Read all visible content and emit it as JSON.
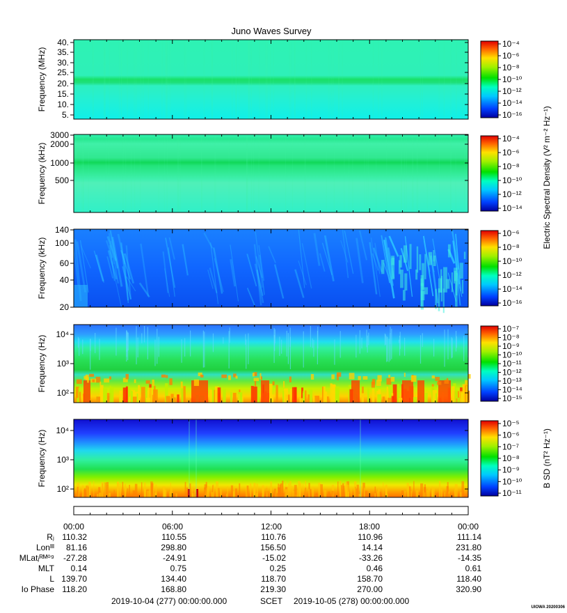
{
  "title": "Juno Waves Survey",
  "shared_colorbar_label": "Electric Spectral Density (V² m⁻² Hz⁻¹)",
  "chart_data": [
    {
      "type": "heatmap",
      "ylabel": "Frequency (MHz)",
      "yticks": [
        "40.",
        "35.",
        "30.",
        "25.",
        "20.",
        "15.",
        "10.",
        "5."
      ],
      "colorbar_ticks": [
        "10⁻⁴",
        "10⁻⁶",
        "10⁻⁸",
        "10⁻¹⁰",
        "10⁻¹²",
        "10⁻¹⁴",
        "10⁻¹⁶"
      ]
    },
    {
      "type": "heatmap",
      "ylabel": "Frequency (kHz)",
      "yticks": [
        "3000",
        "2000",
        "1000",
        "500"
      ],
      "colorbar_ticks": [
        "10⁻⁴",
        "10⁻⁶",
        "10⁻⁸",
        "10⁻¹⁰",
        "10⁻¹²",
        "10⁻¹⁴"
      ]
    },
    {
      "type": "heatmap",
      "ylabel": "Frequency (kHz)",
      "yticks": [
        "140",
        "100",
        "60",
        "40",
        "20"
      ],
      "colorbar_ticks": [
        "10⁻⁶",
        "10⁻⁸",
        "10⁻¹⁰",
        "10⁻¹²",
        "10⁻¹⁴",
        "10⁻¹⁶"
      ]
    },
    {
      "type": "heatmap",
      "ylabel": "Frequency (Hz)",
      "yticks": [
        "10⁴",
        "10³",
        "10²"
      ],
      "colorbar_ticks": [
        "10⁻⁷",
        "10⁻⁸",
        "10⁻⁹",
        "10⁻¹⁰",
        "10⁻¹¹",
        "10⁻¹²",
        "10⁻¹³",
        "10⁻¹⁴",
        "10⁻¹⁵"
      ]
    },
    {
      "type": "heatmap",
      "ylabel": "Frequency (Hz)",
      "yticks": [
        "10⁴",
        "10³",
        "10²"
      ],
      "colorbar_label": "B SD (nT² Hz⁻¹)",
      "colorbar_ticks": [
        "10⁻⁵",
        "10⁻⁶",
        "10⁻⁷",
        "10⁻⁸",
        "10⁻⁹",
        "10⁻¹⁰",
        "10⁻¹¹"
      ]
    }
  ],
  "time_axis": {
    "labels": [
      "00:00",
      "06:00",
      "12:00",
      "18:00",
      "00:00"
    ]
  },
  "ephemeris": [
    {
      "label": "Rⱼ",
      "values": [
        "110.32",
        "110.55",
        "110.76",
        "110.96",
        "111.14"
      ]
    },
    {
      "label": "Lonᴵᴵᴵ",
      "values": [
        "81.16",
        "298.80",
        "156.50",
        "14.14",
        "231.80"
      ]
    },
    {
      "label": "MLatⱼᴿᴹ⁰⁹",
      "values": [
        "-27.28",
        "-24.91",
        "-15.02",
        "-33.26",
        "-14.35"
      ]
    },
    {
      "label": "MLT",
      "values": [
        "0.14",
        "0.75",
        "0.25",
        "0.46",
        "0.61"
      ]
    },
    {
      "label": "L",
      "values": [
        "139.70",
        "134.40",
        "118.70",
        "158.70",
        "118.40"
      ]
    },
    {
      "label": "Io Phase",
      "values": [
        "118.20",
        "168.80",
        "219.30",
        "270.00",
        "320.90"
      ]
    }
  ],
  "footer": {
    "start": "2019-10-04 (277) 00:00:00.000",
    "scet": "SCET",
    "end": "2019-10-05 (278) 00:00:00.000",
    "stamp": "UIOWA 20200306"
  }
}
